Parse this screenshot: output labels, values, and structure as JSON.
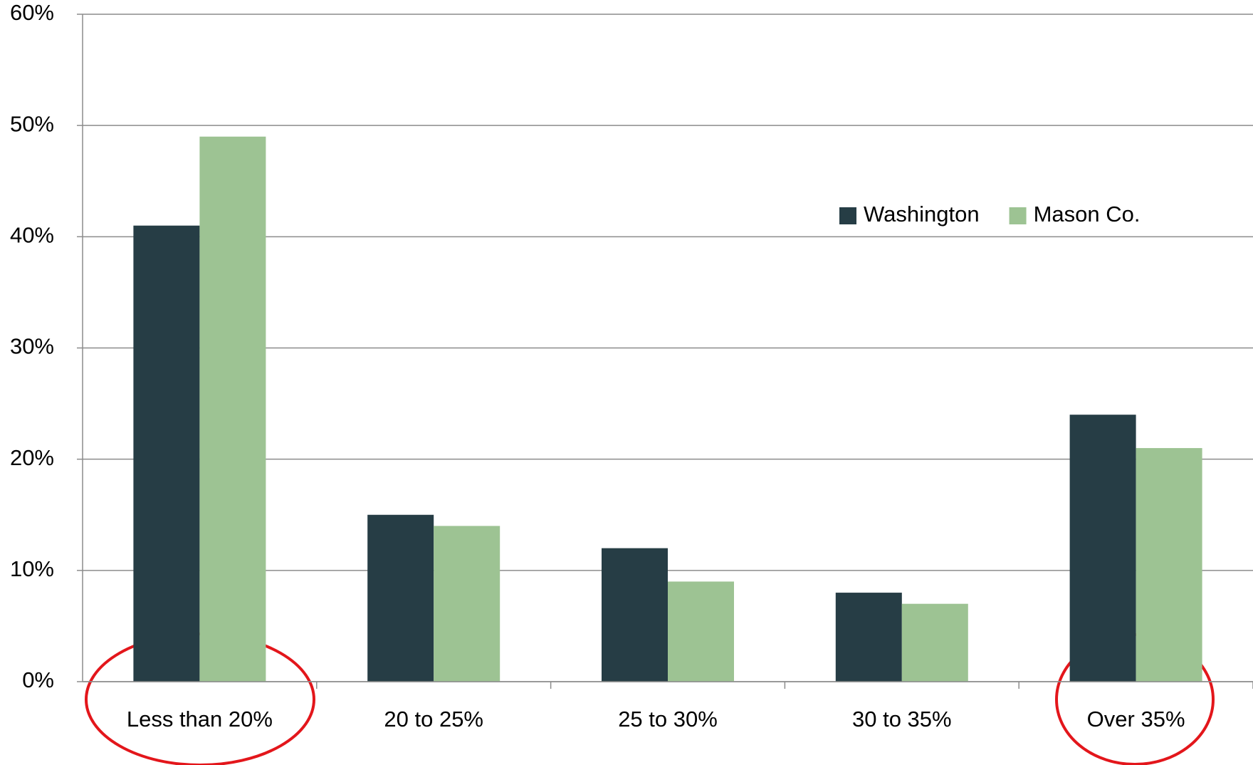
{
  "chart_data": {
    "type": "bar",
    "categories": [
      "Less than 20%",
      "20 to 25%",
      "25 to 30%",
      "30 to 35%",
      "Over 35%"
    ],
    "series": [
      {
        "name": "Washington",
        "color": "#263d45",
        "values": [
          41,
          15,
          12,
          8,
          24
        ]
      },
      {
        "name": "Mason Co.",
        "color": "#9dc393",
        "values": [
          49,
          14,
          9,
          7,
          21
        ]
      }
    ],
    "ylim": [
      0,
      60
    ],
    "yticks": [
      {
        "value": 0,
        "label": "0%"
      },
      {
        "value": 10,
        "label": "10%"
      },
      {
        "value": 20,
        "label": "20%"
      },
      {
        "value": 30,
        "label": "30%"
      },
      {
        "value": 40,
        "label": "40%"
      },
      {
        "value": 50,
        "label": "50%"
      },
      {
        "value": 60,
        "label": "60%"
      }
    ],
    "grid": true,
    "legend": "upper right"
  }
}
